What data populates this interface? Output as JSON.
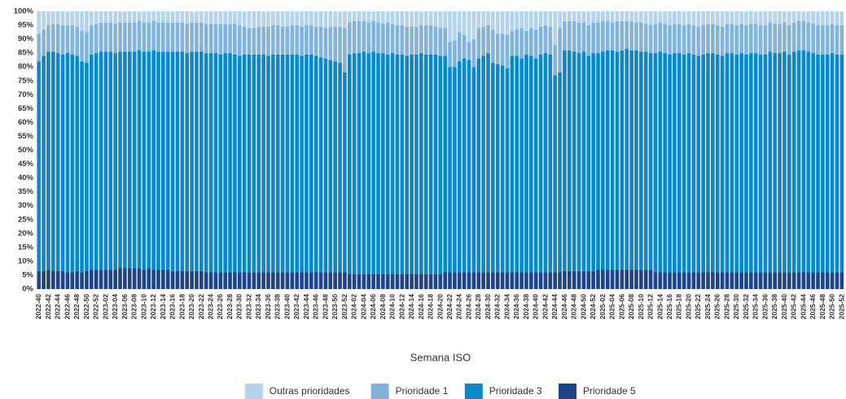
{
  "chart_data": {
    "type": "stacked_bar",
    "x_label": "Semana ISO",
    "categories": [
      "2022-40",
      null,
      "2022-42",
      null,
      "2022-44",
      null,
      "2022-46",
      null,
      "2022-48",
      null,
      "2022-50",
      null,
      "2022-52",
      null,
      "2023-02",
      null,
      "2023-04",
      null,
      "2023-06",
      null,
      "2023-08",
      null,
      "2023-10",
      null,
      "2023-12",
      null,
      "2023-14",
      null,
      "2023-16",
      null,
      "2023-18",
      null,
      "2023-20",
      null,
      "2023-22",
      null,
      "2023-24",
      null,
      "2023-26",
      null,
      "2023-28",
      null,
      "2023-30",
      null,
      "2023-32",
      null,
      "2023-34",
      null,
      "2023-36",
      null,
      "2023-38",
      null,
      "2023-40",
      null,
      "2023-42",
      null,
      "2023-44",
      null,
      "2023-46",
      null,
      "2023-48",
      null,
      "2023-50",
      null,
      "2023-52",
      null,
      "2024-02",
      null,
      "2024-04",
      null,
      "2024-06",
      null,
      "2024-08",
      null,
      "2024-10",
      null,
      "2024-12",
      null,
      "2024-14",
      null,
      "2024-16",
      null,
      "2024-18",
      null,
      "2024-20",
      null,
      "2024-22",
      null,
      "2024-24",
      null,
      "2024-26",
      null,
      "2024-28",
      null,
      "2024-30",
      null,
      "2024-32",
      null,
      "2024-34",
      null,
      "2024-36",
      null,
      "2024-38",
      null,
      "2024-40",
      null,
      "2024-42",
      null,
      "2024-44",
      null,
      "2024-46",
      null,
      "2024-48",
      null,
      "2024-50",
      null,
      "2024-52",
      null,
      "2025-02",
      null,
      "2025-04",
      null,
      "2025-06",
      null,
      "2025-08",
      null,
      "2025-10",
      null,
      "2025-12",
      null,
      "2025-14",
      null,
      "2025-16",
      null,
      "2025-18",
      null,
      "2025-20",
      null,
      "2025-22",
      null,
      "2025-24",
      null,
      "2025-26",
      null,
      "2025-28",
      null,
      "2025-30",
      null,
      "2025-32",
      null,
      "2025-34",
      null,
      "2025-36",
      null,
      "2025-38",
      null,
      "2025-40",
      null,
      "2025-42",
      null,
      "2025-44",
      null,
      "2025-46",
      null,
      "2025-48",
      null,
      "2025-50",
      null,
      "2025-52"
    ],
    "series": [
      {
        "name": "Outras prioridades",
        "color": "#b5d3ea",
        "values": [
          8,
          6.5,
          5,
          4.5,
          4.5,
          5,
          5,
          5,
          5.5,
          7,
          7.5,
          5,
          4.5,
          4,
          4,
          4,
          4.5,
          4,
          4,
          4,
          4,
          3.5,
          4,
          4,
          3.5,
          4,
          4,
          4,
          4,
          4,
          4,
          4.5,
          4,
          4,
          4,
          4.5,
          4.5,
          4.5,
          4.5,
          4.5,
          4.5,
          4.5,
          5,
          5.5,
          6,
          6,
          5.5,
          5.5,
          5.5,
          5,
          5,
          5.5,
          5.5,
          5,
          5,
          5.5,
          5,
          5,
          5.5,
          5.5,
          6,
          5.5,
          5.5,
          5.5,
          6,
          4,
          3.5,
          3.5,
          3.5,
          4,
          3.5,
          4,
          4.5,
          4,
          4.5,
          5,
          5,
          5.5,
          5.5,
          5.5,
          5,
          5,
          5,
          5.5,
          6,
          6,
          11,
          10.5,
          7.5,
          8.5,
          11,
          10,
          6,
          5.5,
          5,
          6.5,
          8,
          8,
          8.5,
          7,
          6.5,
          6,
          7,
          6,
          6.5,
          5.5,
          5,
          5.5,
          12,
          6,
          3.5,
          3.5,
          3.5,
          4,
          4,
          5,
          4,
          4,
          3.5,
          3.5,
          4,
          3.5,
          3.5,
          3.5,
          3.5,
          4,
          4,
          4.5,
          5,
          4.5,
          4,
          4.5,
          5,
          4.5,
          4.5,
          5,
          4.5,
          5,
          5.5,
          5,
          4.5,
          4.5,
          5,
          5.5,
          4.5,
          4.5,
          5,
          4.5,
          5,
          4.5,
          4.5,
          5,
          5,
          4,
          4.5,
          4.5,
          4,
          5,
          4,
          3.5,
          3.5,
          4,
          4.5,
          5,
          5,
          5,
          4.5,
          5,
          5
        ]
      },
      {
        "name": "Prioridade 1",
        "color": "#82b3db",
        "values": [
          10,
          9.5,
          9.5,
          10,
          10.5,
          10.5,
          10,
          10.5,
          10.5,
          11,
          11,
          10.5,
          10.5,
          10.5,
          10.5,
          10.5,
          10.5,
          10.5,
          10.5,
          10.5,
          10.5,
          10.5,
          10.5,
          10.5,
          10.5,
          10.5,
          10.5,
          10.5,
          10.5,
          10.5,
          10.5,
          10.5,
          10.5,
          10.5,
          10.5,
          10.5,
          10.5,
          10.5,
          11,
          10.5,
          10.5,
          11,
          11,
          10,
          9.5,
          9.5,
          10,
          10,
          10.5,
          10.5,
          10.5,
          10,
          10,
          10.5,
          10.5,
          10.5,
          10.5,
          10.5,
          10.5,
          11,
          11,
          12,
          12.5,
          13,
          16,
          11.5,
          11.5,
          11.5,
          11,
          11,
          11,
          11,
          10.5,
          11.5,
          10.5,
          10.5,
          10.5,
          10.5,
          10,
          10,
          10,
          10.5,
          10.5,
          10,
          10,
          10,
          9,
          9.5,
          10.5,
          8.5,
          6.5,
          10,
          11,
          10.5,
          10,
          12,
          11,
          11.5,
          12,
          9,
          9.5,
          11,
          8.5,
          10,
          10.5,
          10,
          10,
          10,
          11,
          16,
          10.5,
          10.5,
          11,
          11,
          10.5,
          11,
          11,
          11,
          11,
          10.5,
          10,
          11,
          10.5,
          10,
          10.5,
          10,
          10.5,
          10,
          10,
          10.5,
          10.5,
          10.5,
          10.5,
          10.5,
          10.5,
          10.5,
          10.5,
          10.5,
          10.5,
          10.5,
          10.5,
          10.5,
          10.5,
          10.5,
          10.5,
          10.5,
          10.5,
          10.5,
          10.5,
          10.5,
          10.5,
          10.5,
          10.5,
          10.5,
          10.5,
          10.5,
          10.5,
          10.5,
          10.5,
          10.5,
          10.5,
          10.5,
          10.5,
          10.5,
          10.5,
          10.5,
          10.5,
          10.5,
          10.5
        ]
      },
      {
        "name": "Prioridade 3",
        "color": "#0a88c9",
        "values": [
          75.5,
          77.5,
          78.5,
          79,
          78.5,
          78,
          79,
          78.5,
          77.5,
          76,
          75,
          77.5,
          78,
          78.5,
          78.5,
          78.5,
          78,
          78,
          78,
          78,
          78,
          78.5,
          78.5,
          78,
          79,
          78.5,
          78.5,
          78.5,
          79,
          79,
          79,
          78.5,
          79,
          79,
          79,
          79,
          79,
          79,
          78.5,
          79,
          79,
          78.5,
          78,
          78.5,
          78.5,
          78.5,
          78.5,
          78.5,
          78,
          78.5,
          78.5,
          78.5,
          78.5,
          78.5,
          78.5,
          78,
          78.5,
          78.5,
          78,
          77.5,
          77,
          76.5,
          76,
          75.5,
          72,
          79,
          79.5,
          79.5,
          80,
          79.5,
          80,
          79.5,
          79.5,
          79,
          79.5,
          79,
          79,
          78.5,
          79,
          79,
          79.5,
          79,
          79,
          79,
          78.5,
          78,
          74,
          74,
          76,
          77,
          76.5,
          74,
          77,
          78,
          79,
          75.5,
          75,
          74.5,
          73.5,
          78,
          78,
          77,
          78.5,
          78,
          77,
          78.5,
          79,
          78.5,
          71,
          72,
          79.5,
          79.5,
          79,
          78.5,
          79,
          77.5,
          78.5,
          78,
          78.5,
          79,
          79,
          78.5,
          79,
          79.5,
          79,
          79,
          78.5,
          78.5,
          78,
          79,
          79.5,
          79,
          78.5,
          79,
          79,
          78.5,
          79,
          78.5,
          78,
          78.5,
          79,
          79,
          78.5,
          78,
          79,
          79,
          78.5,
          79,
          78.5,
          79,
          79,
          78.5,
          78.5,
          79.5,
          79,
          79,
          79.5,
          78.5,
          79.5,
          80,
          80,
          79.5,
          79,
          78.5,
          78.5,
          78.5,
          79,
          78.5,
          78.5
        ]
      },
      {
        "name": "Prioridade 5",
        "color": "#1f4587",
        "values": [
          6.5,
          6.5,
          7,
          6.5,
          6.5,
          6.5,
          6,
          6,
          6.5,
          6,
          6.5,
          7,
          7,
          7,
          7,
          7,
          7,
          7.5,
          7.5,
          7.5,
          7.5,
          7.5,
          7,
          7.5,
          7,
          7,
          7,
          7,
          6.5,
          6.5,
          6.5,
          6.5,
          6.5,
          6.5,
          6.5,
          6,
          6,
          6,
          6,
          6,
          6,
          6,
          6,
          6,
          6,
          6,
          6,
          6,
          6,
          6,
          6,
          6,
          6,
          6,
          6,
          6,
          6,
          6,
          6,
          6,
          6,
          6,
          6,
          6,
          6,
          5.5,
          5.5,
          5.5,
          5.5,
          5.5,
          5.5,
          5.5,
          5.5,
          5.5,
          5.5,
          5.5,
          5.5,
          5.5,
          5.5,
          5.5,
          5.5,
          5.5,
          5.5,
          5.5,
          5.5,
          6,
          6,
          6,
          6,
          6,
          6,
          6,
          6,
          6,
          6,
          6,
          6,
          6,
          6,
          6,
          6,
          6,
          6,
          6,
          6,
          6,
          6,
          6,
          6,
          6,
          6.5,
          6.5,
          6.5,
          6.5,
          6.5,
          6.5,
          6.5,
          7,
          7,
          7,
          7,
          7,
          7,
          7,
          7,
          7,
          7,
          7,
          7,
          6,
          6,
          6,
          6,
          6,
          6,
          6,
          6,
          6,
          6,
          6,
          6,
          6,
          6,
          6,
          6,
          6,
          6,
          6,
          6,
          6,
          6,
          6,
          6,
          6,
          6,
          6,
          6,
          6,
          6,
          6,
          6,
          6,
          6,
          6,
          6,
          6,
          6,
          6,
          6
        ]
      }
    ],
    "stack_order": [
      "Prioridade 5",
      "Prioridade 3",
      "Prioridade 1",
      "Outras prioridades"
    ],
    "ylim": [
      0,
      100
    ],
    "yticks": [
      {
        "value": 0,
        "label": "0%"
      },
      {
        "value": 5,
        "label": "5%"
      },
      {
        "value": 10,
        "label": "10%"
      },
      {
        "value": 15,
        "label": "15%"
      },
      {
        "value": 20,
        "label": "20%"
      },
      {
        "value": 25,
        "label": "25%"
      },
      {
        "value": 30,
        "label": "30%"
      },
      {
        "value": 35,
        "label": "35%"
      },
      {
        "value": 40,
        "label": "40%"
      },
      {
        "value": 45,
        "label": "45%"
      },
      {
        "value": 50,
        "label": "50%"
      },
      {
        "value": 55,
        "label": "55%"
      },
      {
        "value": 60,
        "label": "60%"
      },
      {
        "value": 65,
        "label": "65%"
      },
      {
        "value": 70,
        "label": "70%"
      },
      {
        "value": 75,
        "label": "75%"
      },
      {
        "value": 80,
        "label": "80%"
      },
      {
        "value": 85,
        "label": "85%"
      },
      {
        "value": 90,
        "label": "90%"
      },
      {
        "value": 95,
        "label": "95%"
      },
      {
        "value": 100,
        "label": "100%"
      }
    ],
    "grid": false,
    "legend": "bottom"
  }
}
